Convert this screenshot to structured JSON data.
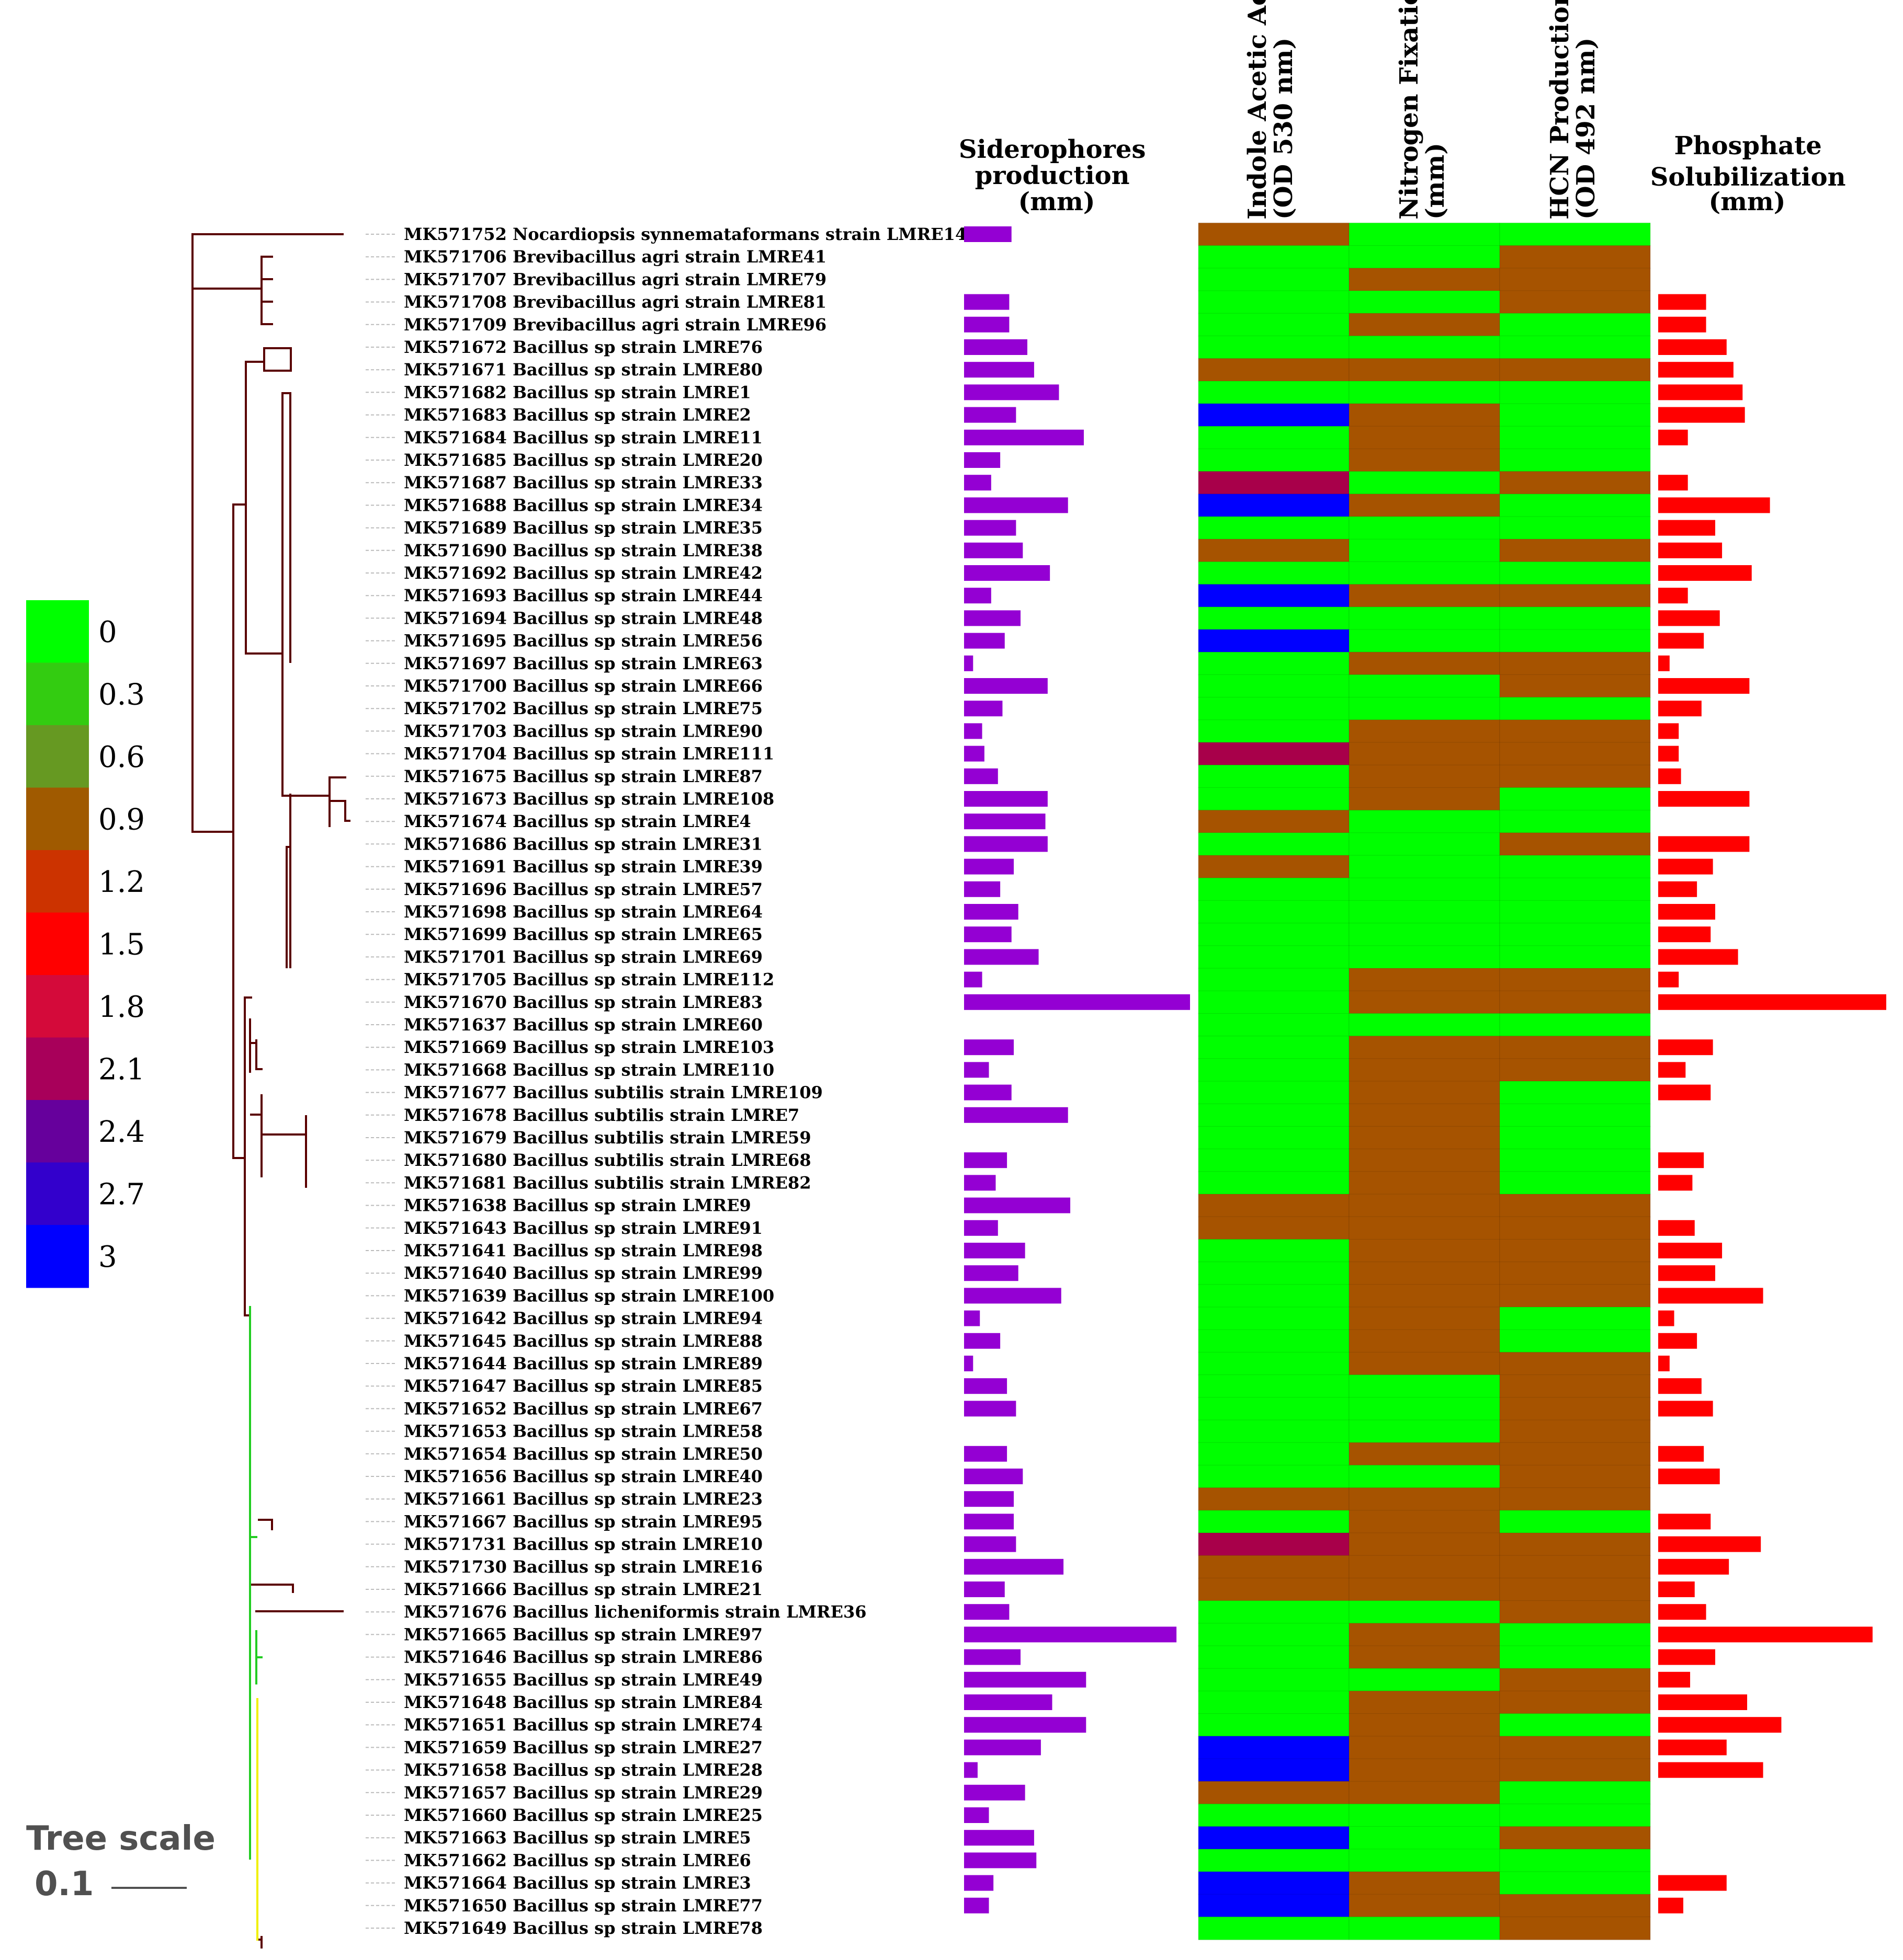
{
  "headers": {
    "siderophores": [
      "Siderophores",
      "production",
      "(mm)"
    ],
    "iaa": [
      "Indole Acetic Acid",
      "(OD 530 nm)"
    ],
    "nitrogen": [
      "Nitrogen Fixation",
      "(mm)"
    ],
    "hcn": [
      "HCN Production",
      "(OD 492 nm)"
    ],
    "phosphate": [
      "Phosphate",
      "Solubilization",
      "(mm)"
    ]
  },
  "legend": {
    "labels": [
      "0",
      "0.3",
      "0.6",
      "0.9",
      "1.2",
      "1.5",
      "1.8",
      "2.1",
      "2.4",
      "2.7",
      "3"
    ],
    "colors": [
      "#00ff00",
      "#33cc11",
      "#669922",
      "#a05a00",
      "#cc3300",
      "#ff0000",
      "#d40a3a",
      "#a8005a",
      "#66009c",
      "#3300cc",
      "#0000ff"
    ]
  },
  "heat_colors": {
    "g": "#00ff00",
    "b": "#a65300",
    "m": "#a8004a",
    "u": "#0000ff"
  },
  "tree_scale": {
    "title": "Tree scale",
    "value": "0.1"
  },
  "colors": {
    "siderophore_bar": "#9400d3",
    "phosphate_bar": "#ff0000",
    "branch": "#5a0000",
    "clade_green": "#22cc22",
    "clade_yellow": "#f0f000",
    "leader": "#bbbbbb"
  },
  "strains": [
    {
      "label": "MK571752 Nocardiopsis synnemataformans strain LMRE14",
      "sid": 0.21,
      "iaa": "b",
      "nit": "g",
      "hcn": "g",
      "phos": null
    },
    {
      "label": "MK571706 Brevibacillus agri strain LMRE41",
      "sid": null,
      "iaa": "g",
      "nit": "g",
      "hcn": "b",
      "phos": null
    },
    {
      "label": "MK571707 Brevibacillus agri strain LMRE79",
      "sid": null,
      "iaa": "g",
      "nit": "b",
      "hcn": "b",
      "phos": null
    },
    {
      "label": "MK571708 Brevibacillus agri strain LMRE81",
      "sid": 0.2,
      "iaa": "g",
      "nit": "g",
      "hcn": "b",
      "phos": 0.21
    },
    {
      "label": "MK571709 Brevibacillus agri strain LMRE96",
      "sid": 0.2,
      "iaa": "g",
      "nit": "b",
      "hcn": "g",
      "phos": 0.21
    },
    {
      "label": "MK571672 Bacillus sp strain LMRE76",
      "sid": 0.28,
      "iaa": "g",
      "nit": "g",
      "hcn": "g",
      "phos": 0.3
    },
    {
      "label": "MK571671 Bacillus sp strain LMRE80",
      "sid": 0.31,
      "iaa": "b",
      "nit": "b",
      "hcn": "b",
      "phos": 0.33
    },
    {
      "label": "MK571682 Bacillus sp strain LMRE1",
      "sid": 0.42,
      "iaa": "g",
      "nit": "g",
      "hcn": "g",
      "phos": 0.37
    },
    {
      "label": "MK571683 Bacillus sp strain LMRE2",
      "sid": 0.23,
      "iaa": "u",
      "nit": "b",
      "hcn": "g",
      "phos": 0.38
    },
    {
      "label": "MK571684 Bacillus sp strain LMRE11",
      "sid": 0.53,
      "iaa": "g",
      "nit": "b",
      "hcn": "g",
      "phos": 0.13
    },
    {
      "label": "MK571685 Bacillus sp strain LMRE20",
      "sid": 0.16,
      "iaa": "g",
      "nit": "b",
      "hcn": "g",
      "phos": null
    },
    {
      "label": "MK571687 Bacillus sp strain LMRE33",
      "sid": 0.12,
      "iaa": "m",
      "nit": "g",
      "hcn": "b",
      "phos": 0.13
    },
    {
      "label": "MK571688 Bacillus sp strain LMRE34",
      "sid": 0.46,
      "iaa": "u",
      "nit": "b",
      "hcn": "g",
      "phos": 0.49
    },
    {
      "label": "MK571689 Bacillus sp strain LMRE35",
      "sid": 0.23,
      "iaa": "g",
      "nit": "g",
      "hcn": "g",
      "phos": 0.25
    },
    {
      "label": "MK571690 Bacillus sp strain LMRE38",
      "sid": 0.26,
      "iaa": "b",
      "nit": "g",
      "hcn": "b",
      "phos": 0.28
    },
    {
      "label": "MK571692 Bacillus sp strain LMRE42",
      "sid": 0.38,
      "iaa": "g",
      "nit": "g",
      "hcn": "g",
      "phos": 0.41
    },
    {
      "label": "MK571693 Bacillus sp strain LMRE44",
      "sid": 0.12,
      "iaa": "u",
      "nit": "b",
      "hcn": "b",
      "phos": 0.13
    },
    {
      "label": "MK571694 Bacillus sp strain LMRE48",
      "sid": 0.25,
      "iaa": "g",
      "nit": "g",
      "hcn": "g",
      "phos": 0.27
    },
    {
      "label": "MK571695 Bacillus sp strain LMRE56",
      "sid": 0.18,
      "iaa": "u",
      "nit": "g",
      "hcn": "g",
      "phos": 0.2
    },
    {
      "label": "MK571697 Bacillus sp strain LMRE63",
      "sid": 0.04,
      "iaa": "g",
      "nit": "b",
      "hcn": "b",
      "phos": 0.05
    },
    {
      "label": "MK571700 Bacillus sp strain LMRE66",
      "sid": 0.37,
      "iaa": "g",
      "nit": "g",
      "hcn": "b",
      "phos": 0.4
    },
    {
      "label": "MK571702 Bacillus sp strain LMRE75",
      "sid": 0.17,
      "iaa": "g",
      "nit": "g",
      "hcn": "g",
      "phos": 0.19
    },
    {
      "label": "MK571703 Bacillus sp strain LMRE90",
      "sid": 0.08,
      "iaa": "g",
      "nit": "b",
      "hcn": "b",
      "phos": 0.09
    },
    {
      "label": "MK571704 Bacillus sp strain LMRE111",
      "sid": 0.09,
      "iaa": "m",
      "nit": "b",
      "hcn": "b",
      "phos": 0.09
    },
    {
      "label": "MK571675 Bacillus sp strain LMRE87",
      "sid": 0.15,
      "iaa": "g",
      "nit": "b",
      "hcn": "b",
      "phos": 0.1
    },
    {
      "label": "MK571673 Bacillus sp strain LMRE108",
      "sid": 0.37,
      "iaa": "g",
      "nit": "b",
      "hcn": "g",
      "phos": 0.4
    },
    {
      "label": "MK571674 Bacillus sp strain LMRE4",
      "sid": 0.36,
      "iaa": "b",
      "nit": "g",
      "hcn": "g",
      "phos": null
    },
    {
      "label": "MK571686 Bacillus sp strain LMRE31",
      "sid": 0.37,
      "iaa": "g",
      "nit": "g",
      "hcn": "b",
      "phos": 0.4
    },
    {
      "label": "MK571691 Bacillus sp strain LMRE39",
      "sid": 0.22,
      "iaa": "b",
      "nit": "g",
      "hcn": "g",
      "phos": 0.24
    },
    {
      "label": "MK571696 Bacillus sp strain LMRE57",
      "sid": 0.16,
      "iaa": "g",
      "nit": "g",
      "hcn": "g",
      "phos": 0.17
    },
    {
      "label": "MK571698 Bacillus sp strain LMRE64",
      "sid": 0.24,
      "iaa": "g",
      "nit": "g",
      "hcn": "g",
      "phos": 0.25
    },
    {
      "label": "MK571699 Bacillus sp strain LMRE65",
      "sid": 0.21,
      "iaa": "g",
      "nit": "g",
      "hcn": "g",
      "phos": 0.23
    },
    {
      "label": "MK571701 Bacillus sp strain LMRE69",
      "sid": 0.33,
      "iaa": "g",
      "nit": "g",
      "hcn": "g",
      "phos": 0.35
    },
    {
      "label": "MK571705 Bacillus sp strain LMRE112",
      "sid": 0.08,
      "iaa": "g",
      "nit": "b",
      "hcn": "b",
      "phos": 0.09
    },
    {
      "label": "MK571670 Bacillus sp strain LMRE83",
      "sid": 1.0,
      "iaa": "g",
      "nit": "b",
      "hcn": "b",
      "phos": 1.0
    },
    {
      "label": "MK571637 Bacillus sp strain LMRE60",
      "sid": null,
      "iaa": "g",
      "nit": "g",
      "hcn": "g",
      "phos": null
    },
    {
      "label": "MK571669 Bacillus sp strain LMRE103",
      "sid": 0.22,
      "iaa": "g",
      "nit": "b",
      "hcn": "b",
      "phos": 0.24
    },
    {
      "label": "MK571668 Bacillus sp strain LMRE110",
      "sid": 0.11,
      "iaa": "g",
      "nit": "b",
      "hcn": "b",
      "phos": 0.12
    },
    {
      "label": "MK571677 Bacillus subtilis strain LMRE109",
      "sid": 0.21,
      "iaa": "g",
      "nit": "b",
      "hcn": "g",
      "phos": 0.23
    },
    {
      "label": "MK571678 Bacillus subtilis strain LMRE7",
      "sid": 0.46,
      "iaa": "g",
      "nit": "b",
      "hcn": "g",
      "phos": null
    },
    {
      "label": "MK571679 Bacillus subtilis strain LMRE59",
      "sid": null,
      "iaa": "g",
      "nit": "b",
      "hcn": "g",
      "phos": null
    },
    {
      "label": "MK571680 Bacillus subtilis strain LMRE68",
      "sid": 0.19,
      "iaa": "g",
      "nit": "b",
      "hcn": "g",
      "phos": 0.2
    },
    {
      "label": "MK571681 Bacillus subtilis strain LMRE82",
      "sid": 0.14,
      "iaa": "g",
      "nit": "b",
      "hcn": "g",
      "phos": 0.15
    },
    {
      "label": "MK571638 Bacillus sp strain LMRE9",
      "sid": 0.47,
      "iaa": "b",
      "nit": "b",
      "hcn": "b",
      "phos": null
    },
    {
      "label": "MK571643 Bacillus sp strain LMRE91",
      "sid": 0.15,
      "iaa": "b",
      "nit": "b",
      "hcn": "b",
      "phos": 0.16
    },
    {
      "label": "MK571641 Bacillus sp strain LMRE98",
      "sid": 0.27,
      "iaa": "g",
      "nit": "b",
      "hcn": "b",
      "phos": 0.28
    },
    {
      "label": "MK571640 Bacillus sp strain LMRE99",
      "sid": 0.24,
      "iaa": "g",
      "nit": "b",
      "hcn": "b",
      "phos": 0.25
    },
    {
      "label": "MK571639 Bacillus sp strain LMRE100",
      "sid": 0.43,
      "iaa": "g",
      "nit": "b",
      "hcn": "b",
      "phos": 0.46
    },
    {
      "label": "MK571642 Bacillus sp strain LMRE94",
      "sid": 0.07,
      "iaa": "g",
      "nit": "b",
      "hcn": "g",
      "phos": 0.07
    },
    {
      "label": "MK571645 Bacillus sp strain LMRE88",
      "sid": 0.16,
      "iaa": "g",
      "nit": "b",
      "hcn": "g",
      "phos": 0.17
    },
    {
      "label": "MK571644 Bacillus sp strain LMRE89",
      "sid": 0.04,
      "iaa": "g",
      "nit": "b",
      "hcn": "b",
      "phos": 0.05
    },
    {
      "label": "MK571647 Bacillus sp strain LMRE85",
      "sid": 0.19,
      "iaa": "g",
      "nit": "g",
      "hcn": "b",
      "phos": 0.19
    },
    {
      "label": "MK571652 Bacillus sp strain LMRE67",
      "sid": 0.23,
      "iaa": "g",
      "nit": "g",
      "hcn": "b",
      "phos": 0.24
    },
    {
      "label": "MK571653 Bacillus sp strain LMRE58",
      "sid": null,
      "iaa": "g",
      "nit": "g",
      "hcn": "b",
      "phos": null
    },
    {
      "label": "MK571654 Bacillus sp strain LMRE50",
      "sid": 0.19,
      "iaa": "g",
      "nit": "b",
      "hcn": "b",
      "phos": 0.2
    },
    {
      "label": "MK571656 Bacillus sp strain LMRE40",
      "sid": 0.26,
      "iaa": "g",
      "nit": "g",
      "hcn": "b",
      "phos": 0.27
    },
    {
      "label": "MK571661 Bacillus sp strain LMRE23",
      "sid": 0.22,
      "iaa": "b",
      "nit": "b",
      "hcn": "b",
      "phos": null
    },
    {
      "label": "MK571667 Bacillus sp strain LMRE95",
      "sid": 0.22,
      "iaa": "g",
      "nit": "b",
      "hcn": "g",
      "phos": 0.23
    },
    {
      "label": "MK571731 Bacillus sp strain LMRE10",
      "sid": 0.23,
      "iaa": "m",
      "nit": "b",
      "hcn": "b",
      "phos": 0.45
    },
    {
      "label": "MK571730 Bacillus sp strain LMRE16",
      "sid": 0.44,
      "iaa": "b",
      "nit": "b",
      "hcn": "b",
      "phos": 0.31
    },
    {
      "label": "MK571666 Bacillus sp strain LMRE21",
      "sid": 0.18,
      "iaa": "b",
      "nit": "b",
      "hcn": "b",
      "phos": 0.16
    },
    {
      "label": "MK571676 Bacillus licheniformis strain LMRE36",
      "sid": 0.2,
      "iaa": "g",
      "nit": "g",
      "hcn": "b",
      "phos": 0.21
    },
    {
      "label": "MK571665 Bacillus sp strain LMRE97",
      "sid": 0.94,
      "iaa": "g",
      "nit": "b",
      "hcn": "g",
      "phos": 0.94
    },
    {
      "label": "MK571646 Bacillus sp strain LMRE86",
      "sid": 0.25,
      "iaa": "g",
      "nit": "b",
      "hcn": "g",
      "phos": 0.25
    },
    {
      "label": "MK571655 Bacillus sp strain LMRE49",
      "sid": 0.54,
      "iaa": "g",
      "nit": "g",
      "hcn": "b",
      "phos": 0.14
    },
    {
      "label": "MK571648 Bacillus sp strain LMRE84",
      "sid": 0.39,
      "iaa": "g",
      "nit": "b",
      "hcn": "b",
      "phos": 0.39
    },
    {
      "label": "MK571651 Bacillus sp strain LMRE74",
      "sid": 0.54,
      "iaa": "g",
      "nit": "b",
      "hcn": "g",
      "phos": 0.54
    },
    {
      "label": "MK571659 Bacillus sp strain LMRE27",
      "sid": 0.34,
      "iaa": "u",
      "nit": "b",
      "hcn": "b",
      "phos": 0.3
    },
    {
      "label": "MK571658 Bacillus sp strain LMRE28",
      "sid": 0.06,
      "iaa": "u",
      "nit": "b",
      "hcn": "b",
      "phos": 0.46
    },
    {
      "label": "MK571657 Bacillus sp strain LMRE29",
      "sid": 0.27,
      "iaa": "b",
      "nit": "b",
      "hcn": "g",
      "phos": null
    },
    {
      "label": "MK571660 Bacillus sp strain LMRE25",
      "sid": 0.11,
      "iaa": "g",
      "nit": "g",
      "hcn": "g",
      "phos": null
    },
    {
      "label": "MK571663 Bacillus sp strain LMRE5",
      "sid": 0.31,
      "iaa": "u",
      "nit": "g",
      "hcn": "b",
      "phos": null
    },
    {
      "label": "MK571662 Bacillus sp strain LMRE6",
      "sid": 0.32,
      "iaa": "g",
      "nit": "g",
      "hcn": "g",
      "phos": null
    },
    {
      "label": "MK571664 Bacillus sp strain LMRE3",
      "sid": 0.13,
      "iaa": "u",
      "nit": "b",
      "hcn": "g",
      "phos": 0.3
    },
    {
      "label": "MK571650 Bacillus sp strain LMRE77",
      "sid": 0.11,
      "iaa": "u",
      "nit": "b",
      "hcn": "b",
      "phos": 0.11
    },
    {
      "label": "MK571649 Bacillus sp strain LMRE78",
      "sid": null,
      "iaa": "g",
      "nit": "g",
      "hcn": "b",
      "phos": null
    }
  ]
}
